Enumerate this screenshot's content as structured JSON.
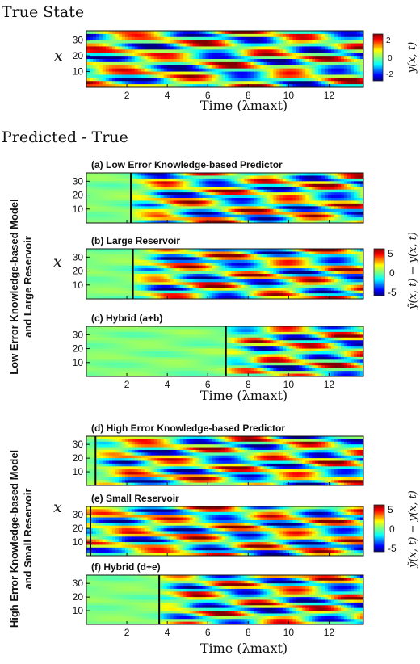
{
  "headers": {
    "true_state": "True State",
    "predicted_minus_true": "Predicted - True"
  },
  "group_labels": {
    "low_line1": "Low Error Knowledge-based Model",
    "low_line2": "and Large Reservoir",
    "high_line1": "High Error Knowledge-based Model",
    "high_line2": "and Small Reservoir"
  },
  "axis": {
    "y_var": "x",
    "time_label": "Time (λmaxt)",
    "x_ticks": [
      "2",
      "4",
      "6",
      "8",
      "10",
      "12"
    ],
    "y_ticks": [
      "10",
      "20",
      "30"
    ],
    "xlim": [
      0,
      13.7
    ],
    "ylim": [
      0,
      36
    ]
  },
  "colorbars": {
    "true": {
      "label": "y(x, t)",
      "ticks": [
        "2",
        "0",
        "-2"
      ],
      "range": [
        -3,
        3
      ]
    },
    "error": {
      "label": "ỹ(x, t) − y(x, t)",
      "ticks": [
        "5",
        "0",
        "-5"
      ],
      "range": [
        -5,
        5
      ]
    }
  },
  "panels": [
    {
      "label": "(a) Low Error Knowledge-based Predictor",
      "valid_time": 2.2
    },
    {
      "label": "(b) Large Reservoir",
      "valid_time": 2.3
    },
    {
      "label": "(c) Hybrid (a+b)",
      "valid_time": 6.9
    },
    {
      "label": "(d) High Error Knowledge-based Predictor",
      "valid_time": 0.45
    },
    {
      "label": "(e) Small Reservoir",
      "valid_time": 0.2
    },
    {
      "label": "(f) Hybrid (d+e)",
      "valid_time": 3.6
    }
  ],
  "chart_data": {
    "type": "heatmap",
    "x_name": "Time (λmaxt)",
    "y_name": "x",
    "xlim": [
      0,
      13.7
    ],
    "ylim": [
      0,
      36
    ],
    "panels": [
      {
        "name": "True State",
        "quantity": "y(x, t)",
        "value_range": [
          -3,
          3
        ]
      },
      {
        "name": "(a) Low Error Knowledge-based Predictor",
        "quantity": "ỹ(x, t) − y(x, t)",
        "value_range": [
          -5,
          5
        ],
        "valid_time": 2.2
      },
      {
        "name": "(b) Large Reservoir",
        "quantity": "ỹ(x, t) − y(x, t)",
        "value_range": [
          -5,
          5
        ],
        "valid_time": 2.3
      },
      {
        "name": "(c) Hybrid (a+b)",
        "quantity": "ỹ(x, t) − y(x, t)",
        "value_range": [
          -5,
          5
        ],
        "valid_time": 6.9
      },
      {
        "name": "(d) High Error Knowledge-based Predictor",
        "quantity": "ỹ(x, t) − y(x, t)",
        "value_range": [
          -5,
          5
        ],
        "valid_time": 0.45
      },
      {
        "name": "(e) Small Reservoir",
        "quantity": "ỹ(x, t) − y(x, t)",
        "value_range": [
          -5,
          5
        ],
        "valid_time": 0.2
      },
      {
        "name": "(f) Hybrid (d+e)",
        "quantity": "ỹ(x, t) − y(x, t)",
        "value_range": [
          -5,
          5
        ],
        "valid_time": 3.6
      }
    ]
  }
}
